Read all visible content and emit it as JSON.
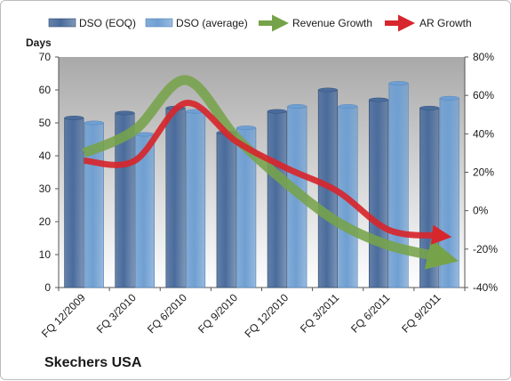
{
  "chart_data": {
    "type": "bar",
    "categories": [
      "FQ 12/2009",
      "FQ 3/2010",
      "FQ 6/2010",
      "FQ 9/2010",
      "FQ 12/2010",
      "FQ 3/2011",
      "FQ 6/2011",
      "FQ 9/2011"
    ],
    "series": [
      {
        "name": "DSO (EOQ)",
        "values": [
          51.5,
          53,
          54.5,
          47,
          53.5,
          60,
          57,
          54.5
        ],
        "color": "#4a6c9c"
      },
      {
        "name": "DSO (average)",
        "values": [
          50,
          46.5,
          53.5,
          48.5,
          55,
          55,
          62,
          57.5
        ],
        "color": "#6f9fd2"
      }
    ],
    "lines": [
      {
        "name": "Revenue Growth",
        "color": "#76a34a",
        "values": [
          30,
          42,
          68,
          38,
          14,
          -6,
          -18,
          -24
        ]
      },
      {
        "name": "AR Growth",
        "color": "#d7262c",
        "values": [
          26,
          26,
          56,
          36,
          22,
          10,
          -10,
          -13
        ]
      }
    ],
    "ylabel": "Days",
    "ylim": [
      0,
      70
    ],
    "yticks": [
      "0",
      "10",
      "20",
      "30",
      "40",
      "50",
      "60",
      "70"
    ],
    "y2lim": [
      -40,
      80
    ],
    "y2ticks": [
      "-40%",
      "-20%",
      "0%",
      "20%",
      "40%",
      "60%",
      "80%"
    ],
    "grid": false,
    "legend": "top"
  },
  "company": "Skechers USA"
}
